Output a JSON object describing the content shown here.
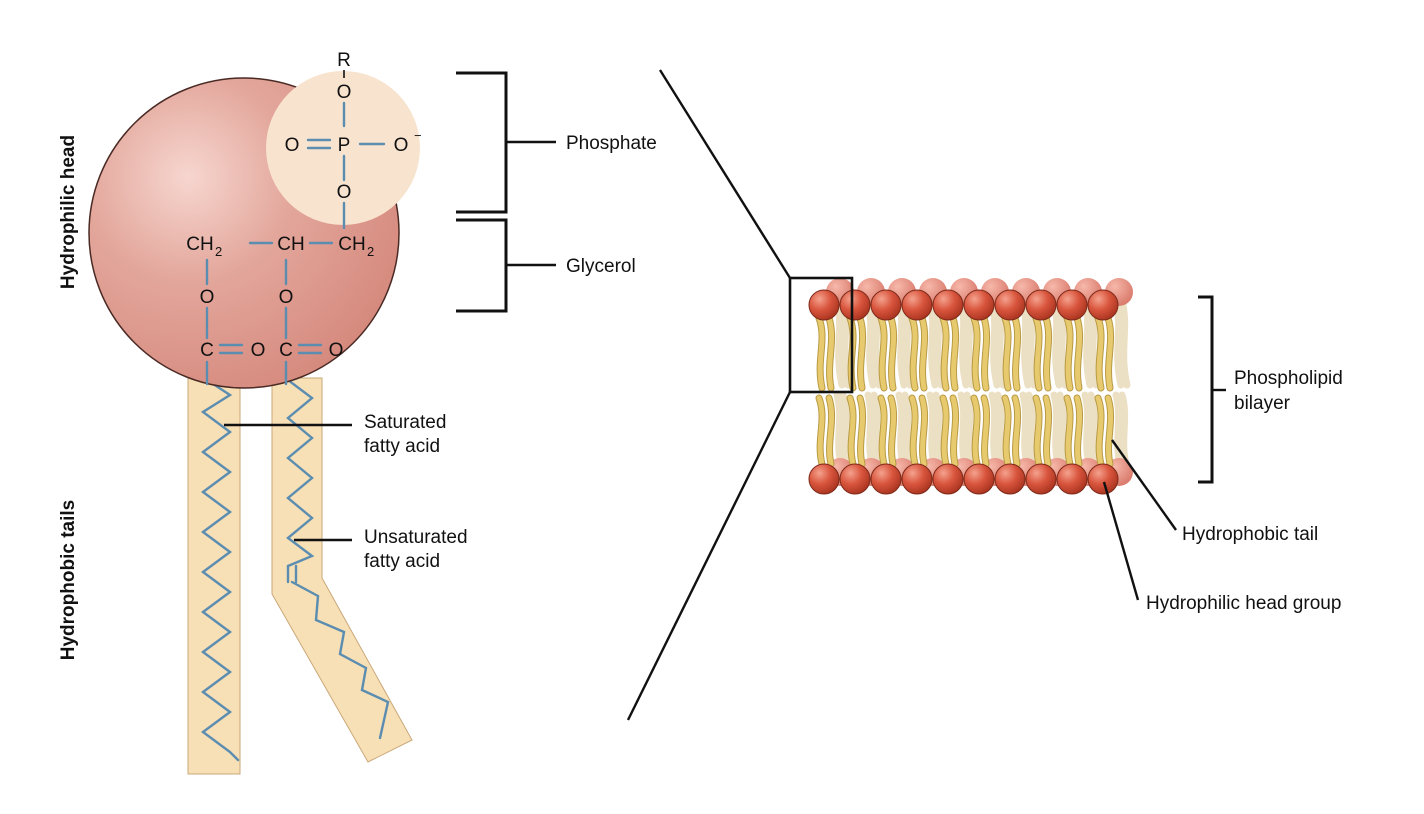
{
  "side_labels": {
    "head": "Hydrophilic head",
    "tails": "Hydrophobic tails"
  },
  "callouts": {
    "phosphate": "Phosphate",
    "glycerol": "Glycerol",
    "saturated_1": "Saturated",
    "saturated_2": "fatty acid",
    "unsaturated_1": "Unsaturated",
    "unsaturated_2": "fatty acid",
    "bilayer_1": "Phospholipid",
    "bilayer_2": "bilayer",
    "tail": "Hydrophobic tail",
    "head_group": "Hydrophilic head group"
  },
  "chem": {
    "r": "R",
    "o": "O",
    "p": "P",
    "o_minus": "O",
    "minus": "−",
    "ch2": "CH",
    "sub2": "2",
    "ch": "CH",
    "c": "C"
  },
  "colors": {
    "head_fill": "#e0a096",
    "head_stroke": "#4a2a24",
    "phosphate_circle": "#f8e3cf",
    "tail_fill": "#f7dfb6",
    "tail_stroke": "#c9a879",
    "bond": "#5b8db0",
    "bead": "#d9553d",
    "bead_dark": "#b03a25",
    "lipid_tail": "#e7c96e"
  }
}
